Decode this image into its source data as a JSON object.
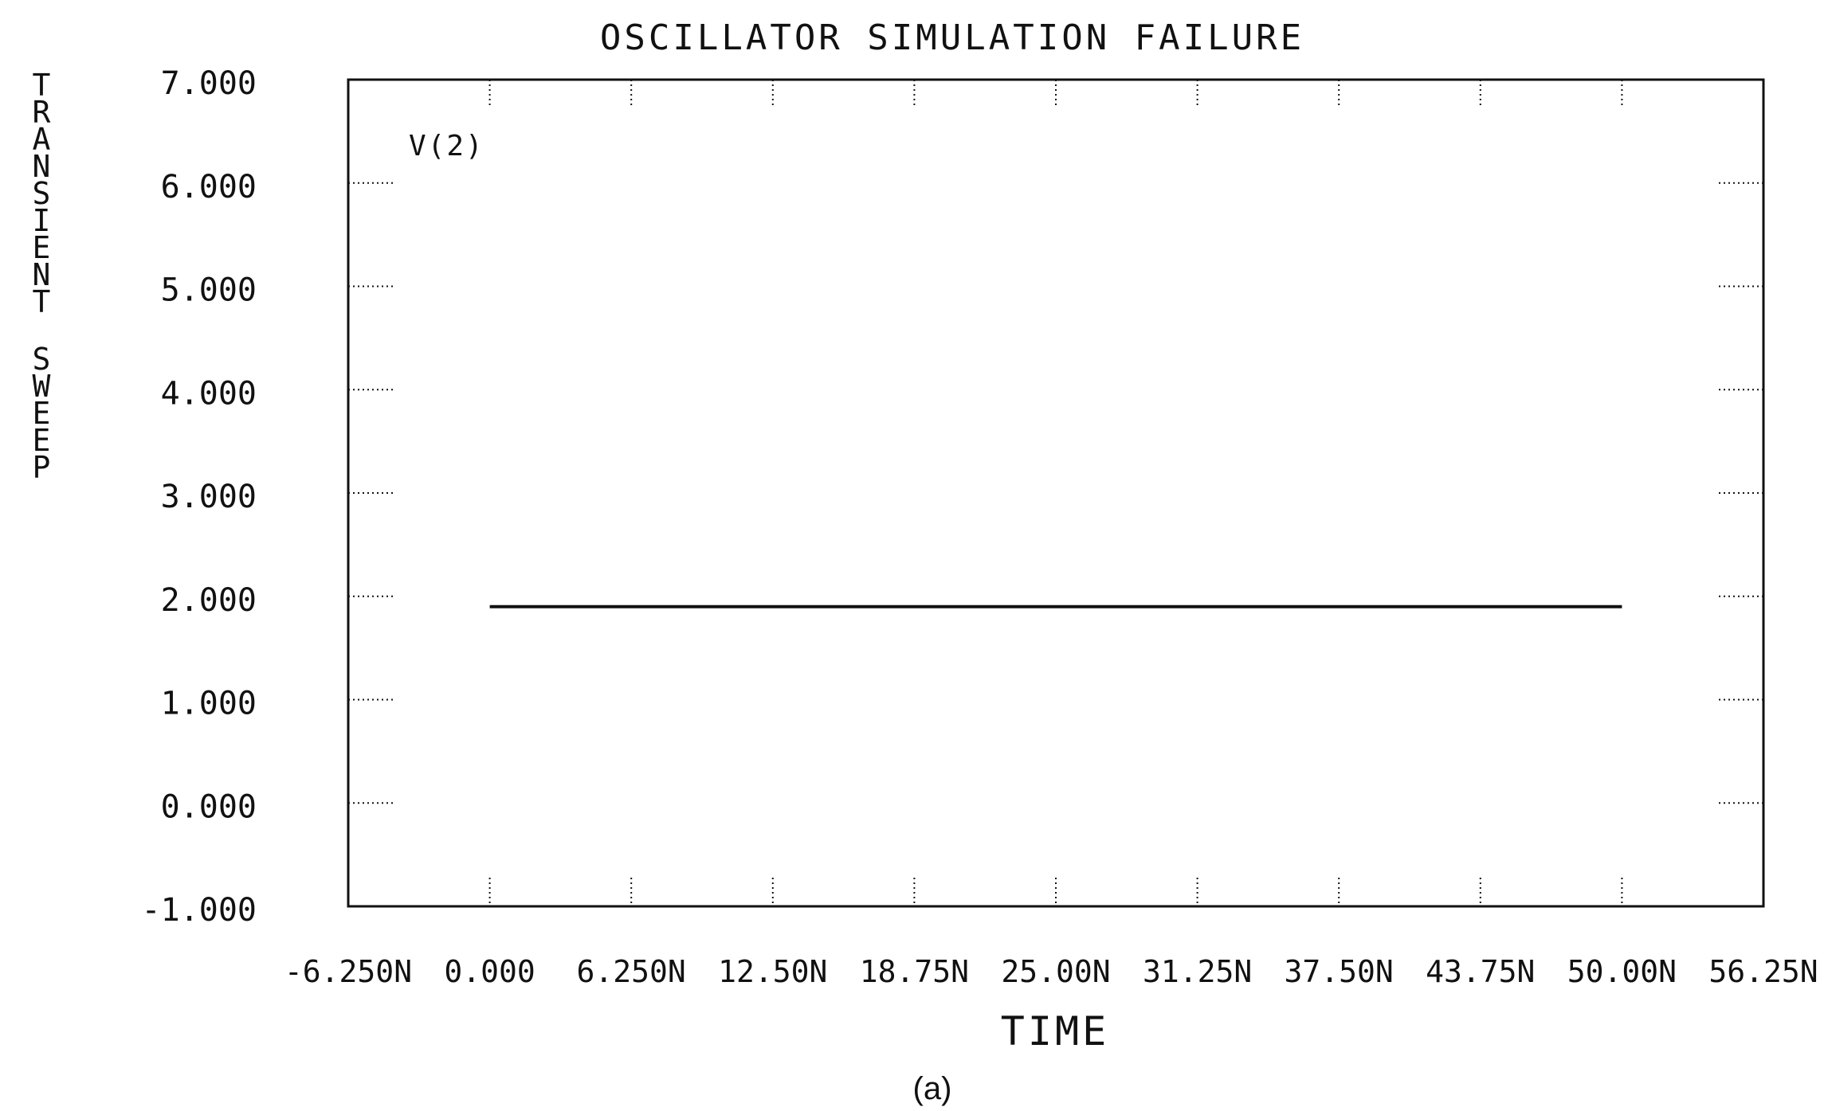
{
  "chart_data": {
    "type": "line",
    "title": "OSCILLATOR SIMULATION FAILURE",
    "xlabel": "TIME",
    "ylabel": "TRANSIENT SWEEP",
    "caption": "(a)",
    "xlim": [
      -6.25,
      56.25
    ],
    "ylim": [
      -1.0,
      7.0
    ],
    "x_ticks": [
      -6.25,
      0,
      6.25,
      12.5,
      18.75,
      25,
      31.25,
      37.5,
      43.75,
      50,
      56.25
    ],
    "x_tick_labels": [
      "-6.250N",
      "0.000",
      "6.250N",
      "12.50N",
      "18.75N",
      "25.00N",
      "31.25N",
      "37.50N",
      "43.75N",
      "50.00N",
      "56.25N"
    ],
    "y_ticks": [
      7,
      6,
      5,
      4,
      3,
      2,
      1,
      0,
      -1
    ],
    "y_tick_labels": [
      "7.000",
      "6.000",
      "5.000",
      "4.000",
      "3.000",
      "2.000",
      "1.000",
      "0.000",
      "-1.000"
    ],
    "grid": "dotted ticks",
    "series": [
      {
        "name": "V(2)",
        "x": [
          0,
          50
        ],
        "y": [
          1.9,
          1.9
        ],
        "color": "#111111"
      }
    ]
  }
}
